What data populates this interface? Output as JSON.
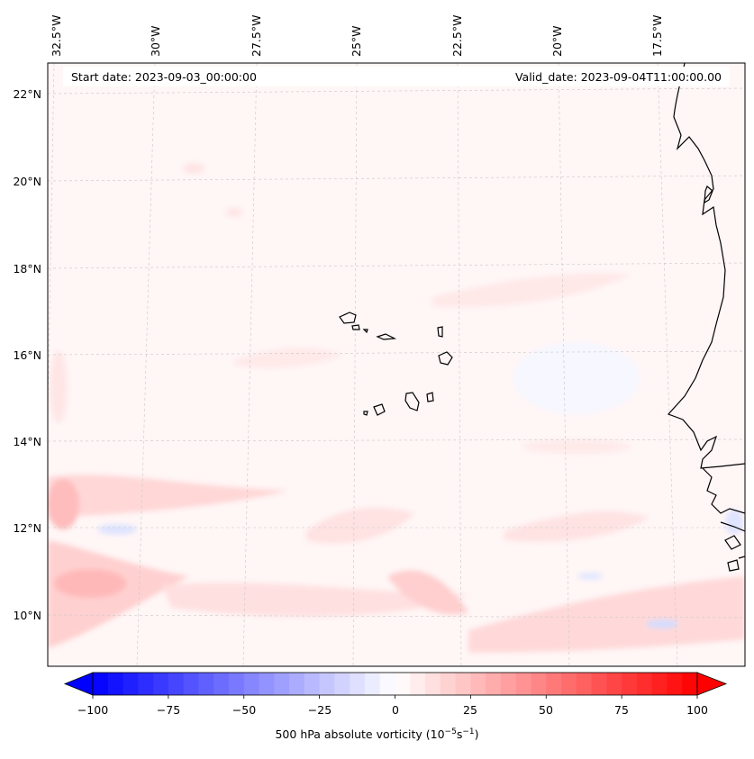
{
  "header": {
    "start_date": "Start date: 2023-09-03_00:00:00",
    "valid_date": "Valid_date: 2023-09-04T11:00:00.00"
  },
  "axes": {
    "longitude_labels": [
      "32.5°W",
      "30°W",
      "27.5°W",
      "25°W",
      "22.5°W",
      "20°W",
      "17.5°W"
    ],
    "latitude_labels": [
      "22°N",
      "20°N",
      "18°N",
      "16°N",
      "14°N",
      "12°N",
      "10°N"
    ]
  },
  "colorbar": {
    "ticks": [
      "−100",
      "−75",
      "−50",
      "−25",
      "0",
      "25",
      "50",
      "75",
      "100"
    ],
    "min": -100,
    "max": 100,
    "label_prefix": "500 hPa absolute vorticity (10",
    "label_exp1": "−5",
    "label_mid": "s",
    "label_exp2": "−1",
    "label_suffix": ")",
    "low_color": "#0000ff",
    "mid_color": "#ffffff",
    "high_color": "#ff0000"
  },
  "map": {
    "features": [
      "vorticity-field",
      "west-africa-coastline",
      "cape-verde-islands"
    ]
  }
}
